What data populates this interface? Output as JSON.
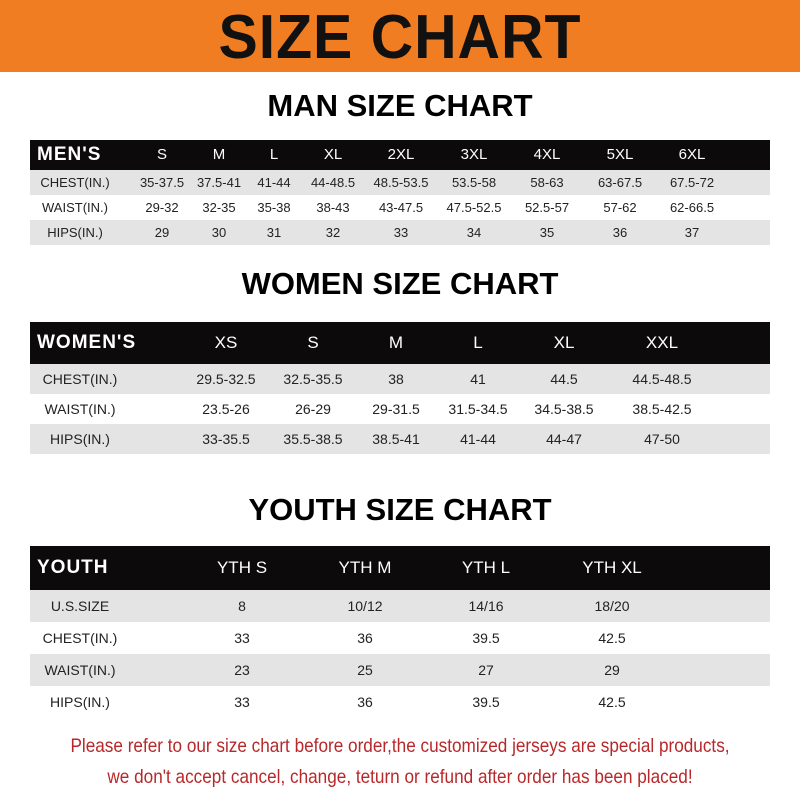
{
  "title": "SIZE CHART",
  "colors": {
    "banner": "#f07d22",
    "header_row": "#0c0a0a",
    "note": "#b8282a"
  },
  "men": {
    "title": "MAN SIZE CHART",
    "header": [
      "MEN'S",
      "S",
      "M",
      "L",
      "XL",
      "2XL",
      "3XL",
      "4XL",
      "5XL",
      "6XL"
    ],
    "rows": [
      [
        "CHEST(IN.)",
        "35-37.5",
        "37.5-41",
        "41-44",
        "44-48.5",
        "48.5-53.5",
        "53.5-58",
        "58-63",
        "63-67.5",
        "67.5-72"
      ],
      [
        "WAIST(IN.)",
        "29-32",
        "32-35",
        "35-38",
        "38-43",
        "43-47.5",
        "47.5-52.5",
        "52.5-57",
        "57-62",
        "62-66.5"
      ],
      [
        "HIPS(IN.)",
        "29",
        "30",
        "31",
        "32",
        "33",
        "34",
        "35",
        "36",
        "37"
      ]
    ]
  },
  "women": {
    "title": "WOMEN SIZE CHART",
    "header": [
      "WOMEN'S",
      "XS",
      "S",
      "M",
      "L",
      "XL",
      "XXL"
    ],
    "rows": [
      [
        "CHEST(IN.)",
        "29.5-32.5",
        "32.5-35.5",
        "38",
        "41",
        "44.5",
        "44.5-48.5"
      ],
      [
        "WAIST(IN.)",
        "23.5-26",
        "26-29",
        "29-31.5",
        "31.5-34.5",
        "34.5-38.5",
        "38.5-42.5"
      ],
      [
        "HIPS(IN.)",
        "33-35.5",
        "35.5-38.5",
        "38.5-41",
        "41-44",
        "44-47",
        "47-50"
      ]
    ]
  },
  "youth": {
    "title": "YOUTH SIZE CHART",
    "header": [
      "YOUTH",
      "YTH S",
      "YTH M",
      "YTH L",
      "YTH XL"
    ],
    "rows": [
      [
        "U.S.SIZE",
        "8",
        "10/12",
        "14/16",
        "18/20"
      ],
      [
        "CHEST(IN.)",
        "33",
        "36",
        "39.5",
        "42.5"
      ],
      [
        "WAIST(IN.)",
        "23",
        "25",
        "27",
        "29"
      ],
      [
        "HIPS(IN.)",
        "33",
        "36",
        "39.5",
        "42.5"
      ]
    ]
  },
  "note": {
    "line1": "Please refer to our size chart before order,the customized jerseys are special products,",
    "line2": "we don't accept cancel, change, teturn or refund after order has been placed!"
  }
}
